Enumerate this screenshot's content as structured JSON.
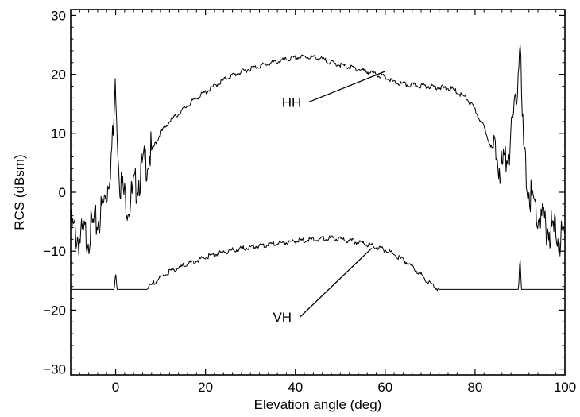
{
  "chart_data": {
    "type": "line",
    "title": "",
    "xlabel": "Elevation angle (deg)",
    "ylabel": "RCS (dBsm)",
    "xlim": [
      -10,
      100
    ],
    "ylim": [
      -31,
      31
    ],
    "x_ticks": [
      0,
      20,
      40,
      60,
      80,
      100
    ],
    "y_ticks": [
      -30,
      -20,
      -10,
      0,
      10,
      20,
      30
    ],
    "grid": false,
    "legend": "none",
    "line_color": "#000000",
    "series": [
      {
        "name": "HH",
        "x": [
          -10,
          -8,
          -6,
          -4,
          -3,
          -2,
          -1,
          -0.5,
          0,
          0.5,
          1,
          2,
          3,
          4,
          6,
          8,
          10,
          12,
          15,
          18,
          20,
          25,
          30,
          35,
          40,
          42,
          45,
          48,
          50,
          55,
          60,
          62,
          65,
          70,
          75,
          78,
          80,
          82,
          84,
          86,
          87,
          88,
          89,
          89.5,
          90,
          90.5,
          91,
          92,
          94,
          96,
          98,
          100
        ],
        "y": [
          -6,
          -8,
          -7,
          -5,
          -3,
          0,
          6,
          10,
          19,
          8,
          2,
          -1,
          -2,
          0,
          4,
          7,
          10,
          12,
          14,
          16,
          17,
          19.5,
          21,
          22,
          22.8,
          23,
          22.8,
          22,
          21.6,
          20.7,
          19.5,
          18.6,
          18.2,
          18,
          17.5,
          16,
          14,
          11,
          7,
          4,
          6,
          9,
          14,
          20,
          27,
          12,
          5,
          0,
          -4,
          -6,
          -7,
          -8
        ]
      },
      {
        "name": "VH",
        "x": [
          -10,
          -1,
          -0.3,
          0,
          0.3,
          1,
          7,
          9,
          12,
          15,
          20,
          25,
          30,
          35,
          40,
          45,
          48,
          50,
          55,
          60,
          63,
          65,
          68,
          70,
          72,
          89,
          89.7,
          90,
          90.3,
          91,
          100
        ],
        "y": [
          -16.5,
          -16.5,
          -16.5,
          -13.5,
          -16.5,
          -16.5,
          -16.5,
          -15,
          -13.5,
          -12.5,
          -11,
          -10,
          -9.3,
          -8.8,
          -8.3,
          -8,
          -7.8,
          -8,
          -8.6,
          -9.8,
          -11,
          -12,
          -14,
          -15.5,
          -16.5,
          -16.5,
          -16.5,
          -10.5,
          -16.5,
          -16.5,
          -16.5
        ]
      }
    ],
    "annotations": [
      {
        "text": "HH",
        "series": "HH",
        "pointer_to": [
          60,
          20.5
        ],
        "label_at": [
          37,
          14.5
        ]
      },
      {
        "text": "VH",
        "series": "VH",
        "pointer_to": [
          57,
          -9.5
        ],
        "label_at": [
          35,
          -22
        ]
      }
    ]
  }
}
